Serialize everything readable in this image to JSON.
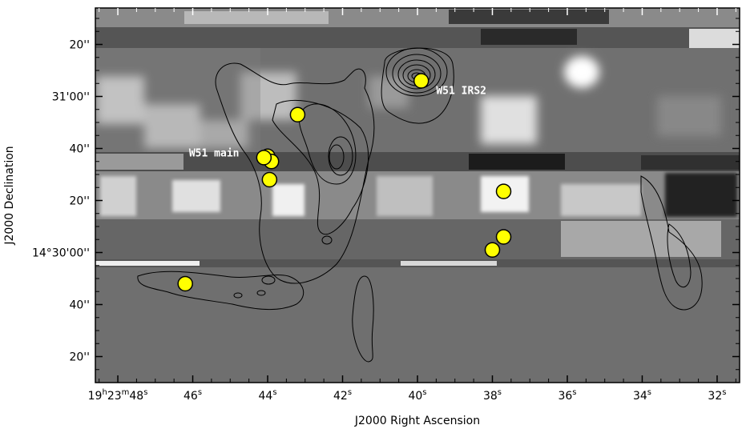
{
  "chart_data": {
    "type": "scatter",
    "title": "",
    "xlabel": "J2000 Right Ascension",
    "ylabel": "J2000 Declination",
    "ra_ticks": [
      {
        "sec": 48,
        "label": "19h23m48s"
      },
      {
        "sec": 46,
        "label": "46s"
      },
      {
        "sec": 44,
        "label": "44s"
      },
      {
        "sec": 42,
        "label": "42s"
      },
      {
        "sec": 40,
        "label": "40s"
      },
      {
        "sec": 38,
        "label": "38s"
      },
      {
        "sec": 36,
        "label": "36s"
      },
      {
        "sec": 34,
        "label": "34s"
      },
      {
        "sec": 32,
        "label": "32s"
      }
    ],
    "dec_ticks": [
      {
        "arcsec": 80,
        "label": "20''"
      },
      {
        "arcsec": 60,
        "label": "31'00''"
      },
      {
        "arcsec": 40,
        "label": "40''"
      },
      {
        "arcsec": 20,
        "label": "20''"
      },
      {
        "arcsec": 0,
        "label": "14°30'00''"
      },
      {
        "arcsec": -20,
        "label": "40''"
      },
      {
        "arcsec": -40,
        "label": "20''"
      }
    ],
    "xlim": [
      48.6,
      31.4
    ],
    "ylim": [
      -50,
      94
    ],
    "point_color": "#ffff00",
    "sources": [
      {
        "ra": 39.9,
        "dec": 66
      },
      {
        "ra": 43.2,
        "dec": 53
      },
      {
        "ra": 44.0,
        "dec": 37
      },
      {
        "ra": 43.9,
        "dec": 35
      },
      {
        "ra": 44.1,
        "dec": 36.5
      },
      {
        "ra": 43.95,
        "dec": 28
      },
      {
        "ra": 37.7,
        "dec": 23.5
      },
      {
        "ra": 37.7,
        "dec": 6
      },
      {
        "ra": 38.0,
        "dec": 1
      },
      {
        "ra": 46.2,
        "dec": -12
      }
    ],
    "annotations": [
      {
        "text": "W51 IRS2",
        "ra": 39.5,
        "dec": 61
      },
      {
        "text": "W51 main",
        "ra": 46.1,
        "dec": 37
      }
    ]
  }
}
